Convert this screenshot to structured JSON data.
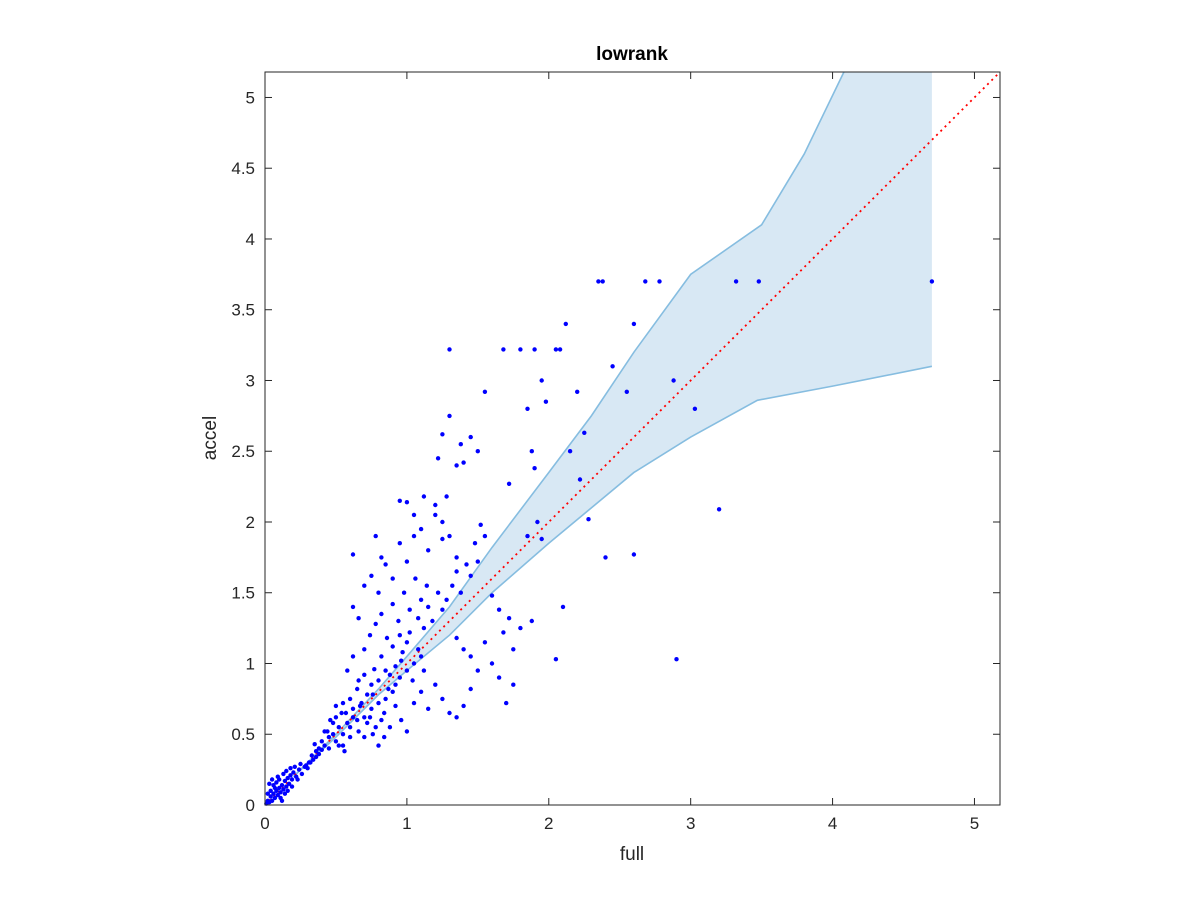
{
  "chart_data": {
    "type": "scatter",
    "title": "lowrank",
    "xlabel": "full",
    "ylabel": "accel",
    "xlim": [
      0,
      5.18
    ],
    "ylim": [
      0,
      5.18
    ],
    "xticks": [
      0,
      1,
      2,
      3,
      4,
      5
    ],
    "yticks": [
      0,
      0.5,
      1,
      1.5,
      2,
      2.5,
      3,
      3.5,
      4,
      4.5,
      5
    ],
    "xtick_labels": [
      "0",
      "1",
      "2",
      "3",
      "4",
      "5"
    ],
    "ytick_labels": [
      "0",
      "0.5",
      "1",
      "1.5",
      "2",
      "2.5",
      "3",
      "3.5",
      "4",
      "4.5",
      "5"
    ],
    "grid": false,
    "box": true,
    "colors": {
      "points": "#0000ff",
      "band_fill": "#d8e8f4",
      "band_edge": "#86bde0",
      "reference_line": "#ff0000",
      "axes": "#262626"
    },
    "reference_line": {
      "style": "dotted",
      "x": [
        0,
        5.18
      ],
      "y": [
        0,
        5.18
      ]
    },
    "band": {
      "upper": [
        [
          0.2,
          0.2
        ],
        [
          0.5,
          0.5
        ],
        [
          0.8,
          0.82
        ],
        [
          1.0,
          1.05
        ],
        [
          1.3,
          1.4
        ],
        [
          1.6,
          1.82
        ],
        [
          2.0,
          2.35
        ],
        [
          2.3,
          2.75
        ],
        [
          2.6,
          3.2
        ],
        [
          3.0,
          3.75
        ],
        [
          3.5,
          4.1
        ],
        [
          3.8,
          4.6
        ],
        [
          4.08,
          5.18
        ],
        [
          4.7,
          5.18
        ]
      ],
      "lower": [
        [
          0.2,
          0.2
        ],
        [
          0.5,
          0.48
        ],
        [
          0.8,
          0.78
        ],
        [
          1.0,
          0.95
        ],
        [
          1.3,
          1.2
        ],
        [
          1.6,
          1.5
        ],
        [
          2.0,
          1.85
        ],
        [
          2.3,
          2.1
        ],
        [
          2.6,
          2.35
        ],
        [
          3.0,
          2.6
        ],
        [
          3.47,
          2.86
        ],
        [
          4.0,
          2.96
        ],
        [
          4.7,
          3.1
        ]
      ]
    },
    "series": [
      {
        "points": [
          [
            0.01,
            0.01
          ],
          [
            0.02,
            0.03
          ],
          [
            0.03,
            0.02
          ],
          [
            0.04,
            0.06
          ],
          [
            0.05,
            0.03
          ],
          [
            0.06,
            0.08
          ],
          [
            0.07,
            0.05
          ],
          [
            0.08,
            0.1
          ],
          [
            0.09,
            0.07
          ],
          [
            0.1,
            0.12
          ],
          [
            0.11,
            0.09
          ],
          [
            0.12,
            0.14
          ],
          [
            0.13,
            0.11
          ],
          [
            0.14,
            0.17
          ],
          [
            0.15,
            0.13
          ],
          [
            0.16,
            0.19
          ],
          [
            0.17,
            0.15
          ],
          [
            0.18,
            0.21
          ],
          [
            0.19,
            0.18
          ],
          [
            0.2,
            0.23
          ],
          [
            0.22,
            0.2
          ],
          [
            0.24,
            0.25
          ],
          [
            0.26,
            0.22
          ],
          [
            0.28,
            0.27
          ],
          [
            0.3,
            0.26
          ],
          [
            0.32,
            0.3
          ],
          [
            0.34,
            0.32
          ],
          [
            0.36,
            0.34
          ],
          [
            0.38,
            0.36
          ],
          [
            0.4,
            0.39
          ],
          [
            0.03,
            0.15
          ],
          [
            0.05,
            0.18
          ],
          [
            0.07,
            0.12
          ],
          [
            0.09,
            0.2
          ],
          [
            0.11,
            0.05
          ],
          [
            0.13,
            0.22
          ],
          [
            0.04,
            0.1
          ],
          [
            0.08,
            0.16
          ],
          [
            0.12,
            0.03
          ],
          [
            0.06,
            0.14
          ],
          [
            0.15,
            0.24
          ],
          [
            0.18,
            0.26
          ],
          [
            0.21,
            0.27
          ],
          [
            0.25,
            0.29
          ],
          [
            0.1,
            0.18
          ],
          [
            0.02,
            0.08
          ],
          [
            0.14,
            0.08
          ],
          [
            0.16,
            0.1
          ],
          [
            0.19,
            0.13
          ],
          [
            0.23,
            0.18
          ],
          [
            0.35,
            0.43
          ],
          [
            0.4,
            0.45
          ],
          [
            0.42,
            0.52
          ],
          [
            0.45,
            0.48
          ],
          [
            0.48,
            0.58
          ],
          [
            0.5,
            0.62
          ],
          [
            0.52,
            0.55
          ],
          [
            0.55,
            0.72
          ],
          [
            0.57,
            0.65
          ],
          [
            0.6,
            0.75
          ],
          [
            0.62,
            0.68
          ],
          [
            0.65,
            0.82
          ],
          [
            0.67,
            0.7
          ],
          [
            0.7,
            0.92
          ],
          [
            0.72,
            0.78
          ],
          [
            0.75,
            0.85
          ],
          [
            0.77,
            0.96
          ],
          [
            0.8,
            0.88
          ],
          [
            0.82,
            1.05
          ],
          [
            0.85,
            0.95
          ],
          [
            0.87,
            0.82
          ],
          [
            0.9,
            1.12
          ],
          [
            0.92,
            0.98
          ],
          [
            0.95,
            1.2
          ],
          [
            0.97,
            1.08
          ],
          [
            1.0,
            1.15
          ],
          [
            0.45,
            0.4
          ],
          [
            0.5,
            0.45
          ],
          [
            0.55,
            0.5
          ],
          [
            0.6,
            0.55
          ],
          [
            0.65,
            0.6
          ],
          [
            0.7,
            0.62
          ],
          [
            0.75,
            0.68
          ],
          [
            0.8,
            0.72
          ],
          [
            0.85,
            0.75
          ],
          [
            0.9,
            0.8
          ],
          [
            0.95,
            0.9
          ],
          [
            1.0,
            0.95
          ],
          [
            1.05,
            1.0
          ],
          [
            1.1,
            1.05
          ],
          [
            0.58,
            0.95
          ],
          [
            0.62,
            1.05
          ],
          [
            0.66,
            0.88
          ],
          [
            0.7,
            1.1
          ],
          [
            0.74,
            1.2
          ],
          [
            0.78,
            1.28
          ],
          [
            0.82,
            1.35
          ],
          [
            0.86,
            1.18
          ],
          [
            0.9,
            1.42
          ],
          [
            0.94,
            1.3
          ],
          [
            0.98,
            1.5
          ],
          [
            1.02,
            1.38
          ],
          [
            1.06,
            1.6
          ],
          [
            1.1,
            1.45
          ],
          [
            1.14,
            1.55
          ],
          [
            0.62,
            1.4
          ],
          [
            0.66,
            1.32
          ],
          [
            0.7,
            1.55
          ],
          [
            0.75,
            1.62
          ],
          [
            0.8,
            1.5
          ],
          [
            0.85,
            1.7
          ],
          [
            0.9,
            1.6
          ],
          [
            0.95,
            1.85
          ],
          [
            1.0,
            1.72
          ],
          [
            1.05,
            1.9
          ],
          [
            1.1,
            1.95
          ],
          [
            1.15,
            1.8
          ],
          [
            1.2,
            2.05
          ],
          [
            1.25,
            1.88
          ],
          [
            0.62,
            1.77
          ],
          [
            0.78,
            1.9
          ],
          [
            0.82,
            1.75
          ],
          [
            0.95,
            2.15
          ],
          [
            1.0,
            2.14
          ],
          [
            1.05,
            2.05
          ],
          [
            1.12,
            2.18
          ],
          [
            1.2,
            2.12
          ],
          [
            1.25,
            2.0
          ],
          [
            1.3,
            1.9
          ],
          [
            1.35,
            1.75
          ],
          [
            1.02,
            1.22
          ],
          [
            1.08,
            1.32
          ],
          [
            1.12,
            1.25
          ],
          [
            1.15,
            1.4
          ],
          [
            1.18,
            1.3
          ],
          [
            1.22,
            1.5
          ],
          [
            1.25,
            1.38
          ],
          [
            1.28,
            1.45
          ],
          [
            1.32,
            1.55
          ],
          [
            1.35,
            1.65
          ],
          [
            1.38,
            1.5
          ],
          [
            1.42,
            1.7
          ],
          [
            1.45,
            1.62
          ],
          [
            1.48,
            1.85
          ],
          [
            1.5,
            1.72
          ],
          [
            1.52,
            1.98
          ],
          [
            1.55,
            1.9
          ],
          [
            1.35,
            1.18
          ],
          [
            1.4,
            1.1
          ],
          [
            1.45,
            1.05
          ],
          [
            1.5,
            0.95
          ],
          [
            1.55,
            1.15
          ],
          [
            1.6,
            1.0
          ],
          [
            1.65,
            0.9
          ],
          [
            1.2,
            0.85
          ],
          [
            1.25,
            0.75
          ],
          [
            1.3,
            0.65
          ],
          [
            1.35,
            0.62
          ],
          [
            1.4,
            0.7
          ],
          [
            1.45,
            0.82
          ],
          [
            1.05,
            0.72
          ],
          [
            1.1,
            0.8
          ],
          [
            1.15,
            0.68
          ],
          [
            0.92,
            0.7
          ],
          [
            0.96,
            0.6
          ],
          [
            1.0,
            0.52
          ],
          [
            0.88,
            0.55
          ],
          [
            0.84,
            0.48
          ],
          [
            0.8,
            0.42
          ],
          [
            0.76,
            0.5
          ],
          [
            1.22,
            2.45
          ],
          [
            1.25,
            2.62
          ],
          [
            1.3,
            2.75
          ],
          [
            1.35,
            2.4
          ],
          [
            1.38,
            2.55
          ],
          [
            1.4,
            2.42
          ],
          [
            1.45,
            2.6
          ],
          [
            1.5,
            2.5
          ],
          [
            1.55,
            2.92
          ],
          [
            1.28,
            2.18
          ],
          [
            1.3,
            3.22
          ],
          [
            1.68,
            3.22
          ],
          [
            1.8,
            3.22
          ],
          [
            1.9,
            3.22
          ],
          [
            1.72,
            2.27
          ],
          [
            1.85,
            2.8
          ],
          [
            1.88,
            2.5
          ],
          [
            1.9,
            2.38
          ],
          [
            1.95,
            3.0
          ],
          [
            1.98,
            2.85
          ],
          [
            2.05,
            3.22
          ],
          [
            2.08,
            3.22
          ],
          [
            2.12,
            3.4
          ],
          [
            2.2,
            2.92
          ],
          [
            2.15,
            2.5
          ],
          [
            2.25,
            2.63
          ],
          [
            2.35,
            3.7
          ],
          [
            2.38,
            3.7
          ],
          [
            2.6,
            3.4
          ],
          [
            2.68,
            3.7
          ],
          [
            2.78,
            3.7
          ],
          [
            2.45,
            3.1
          ],
          [
            2.55,
            2.92
          ],
          [
            2.88,
            3.0
          ],
          [
            3.03,
            2.8
          ],
          [
            3.32,
            3.7
          ],
          [
            3.48,
            3.7
          ],
          [
            4.7,
            3.7
          ],
          [
            2.22,
            2.3
          ],
          [
            2.28,
            2.02
          ],
          [
            1.85,
            1.9
          ],
          [
            1.92,
            2.0
          ],
          [
            1.95,
            1.88
          ],
          [
            1.6,
            1.48
          ],
          [
            1.65,
            1.38
          ],
          [
            1.68,
            1.22
          ],
          [
            1.72,
            1.32
          ],
          [
            1.75,
            1.1
          ],
          [
            1.8,
            1.25
          ],
          [
            1.88,
            1.3
          ],
          [
            1.7,
            0.72
          ],
          [
            1.75,
            0.85
          ],
          [
            2.05,
            1.03
          ],
          [
            2.1,
            1.4
          ],
          [
            2.4,
            1.75
          ],
          [
            2.6,
            1.77
          ],
          [
            2.9,
            1.03
          ],
          [
            3.2,
            2.09
          ],
          [
            0.55,
            0.42
          ],
          [
            0.6,
            0.48
          ],
          [
            0.68,
            0.72
          ],
          [
            0.72,
            0.58
          ],
          [
            0.76,
            0.78
          ],
          [
            0.84,
            0.65
          ],
          [
            0.88,
            0.92
          ],
          [
            0.92,
            0.85
          ],
          [
            0.96,
            1.02
          ],
          [
            1.04,
            0.88
          ],
          [
            1.08,
            1.1
          ],
          [
            1.12,
            0.95
          ],
          [
            0.46,
            0.6
          ],
          [
            0.5,
            0.7
          ],
          [
            0.54,
            0.65
          ],
          [
            0.58,
            0.58
          ],
          [
            0.62,
            0.62
          ],
          [
            0.66,
            0.52
          ],
          [
            0.7,
            0.48
          ],
          [
            0.74,
            0.62
          ],
          [
            0.78,
            0.55
          ],
          [
            0.82,
            0.6
          ],
          [
            0.44,
            0.52
          ],
          [
            0.48,
            0.5
          ],
          [
            0.52,
            0.42
          ],
          [
            0.56,
            0.38
          ],
          [
            0.42,
            0.42
          ],
          [
            0.38,
            0.4
          ],
          [
            0.36,
            0.38
          ],
          [
            0.33,
            0.35
          ],
          [
            0.31,
            0.3
          ],
          [
            0.29,
            0.28
          ]
        ]
      }
    ]
  }
}
